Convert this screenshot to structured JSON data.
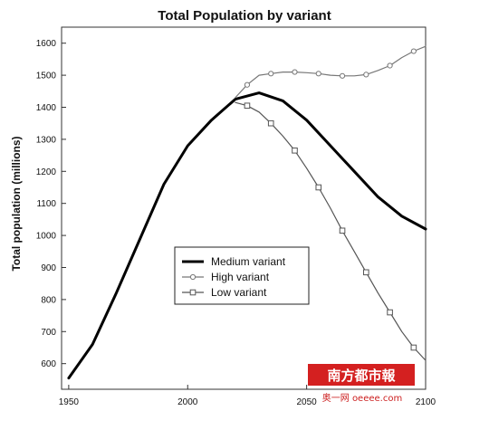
{
  "chart_data": {
    "type": "line",
    "title": "Total Population by variant",
    "xlabel": "",
    "ylabel": "Total population (millions)",
    "xlim": [
      1947,
      2100
    ],
    "ylim": [
      520,
      1650
    ],
    "x_ticks": [
      1950,
      2000,
      2050,
      2100
    ],
    "x_tick_labels": [
      "1950",
      "2000",
      "2050",
      "2100"
    ],
    "y_ticks": [
      600,
      700,
      800,
      900,
      1000,
      1100,
      1200,
      1300,
      1400,
      1500,
      1600
    ],
    "y_tick_labels": [
      "600",
      "700",
      "800",
      "900",
      "1000",
      "1100",
      "1200",
      "1300",
      "1400",
      "1500",
      "1600"
    ],
    "grid": false,
    "legend_position": "center",
    "series": [
      {
        "name": "Medium variant",
        "color": "#000000",
        "marker": "none",
        "x": [
          1950,
          1960,
          1970,
          1980,
          1990,
          2000,
          2010,
          2020,
          2030,
          2040,
          2050,
          2060,
          2070,
          2080,
          2090,
          2100
        ],
        "y": [
          555,
          660,
          820,
          990,
          1160,
          1280,
          1360,
          1425,
          1445,
          1420,
          1360,
          1280,
          1200,
          1120,
          1060,
          1020
        ]
      },
      {
        "name": "High variant",
        "color": "#777777",
        "marker": "circle",
        "x": [
          2020,
          2025,
          2030,
          2035,
          2040,
          2045,
          2050,
          2055,
          2060,
          2065,
          2070,
          2075,
          2080,
          2085,
          2090,
          2095,
          2100
        ],
        "y": [
          1430,
          1470,
          1500,
          1505,
          1510,
          1510,
          1508,
          1505,
          1500,
          1498,
          1498,
          1502,
          1515,
          1530,
          1555,
          1575,
          1590
        ]
      },
      {
        "name": "Low variant",
        "color": "#555555",
        "marker": "square",
        "x": [
          2020,
          2025,
          2030,
          2035,
          2040,
          2045,
          2050,
          2055,
          2060,
          2065,
          2070,
          2075,
          2080,
          2085,
          2090,
          2095,
          2100
        ],
        "y": [
          1415,
          1405,
          1385,
          1350,
          1310,
          1265,
          1210,
          1150,
          1085,
          1015,
          950,
          885,
          820,
          760,
          700,
          650,
          610
        ]
      }
    ]
  },
  "watermark": {
    "line1": "南方都市報",
    "line2": "奥一网 oeeee.com"
  }
}
